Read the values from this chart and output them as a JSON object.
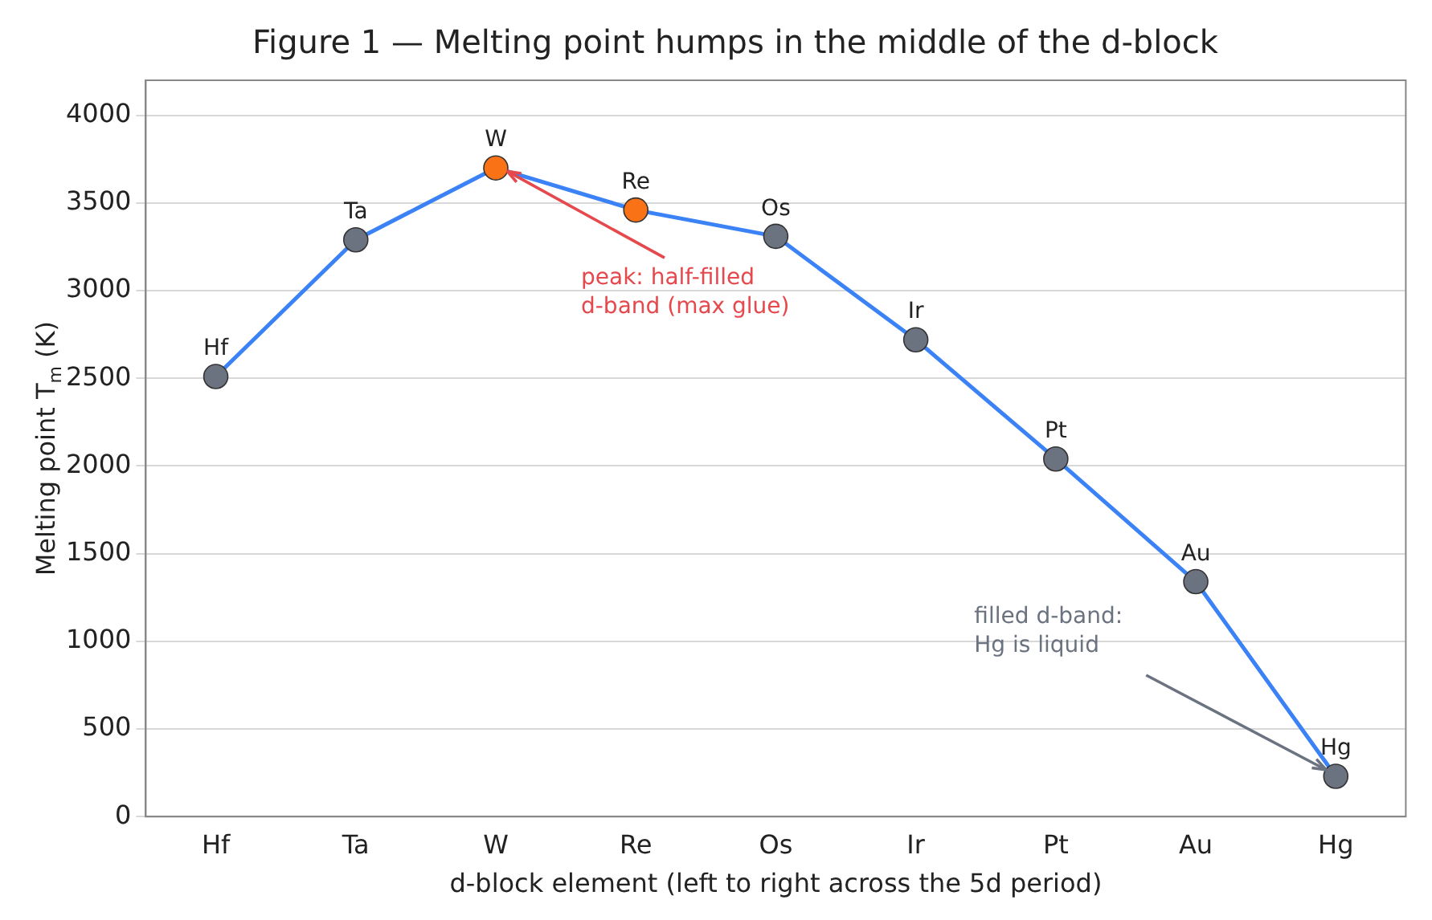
{
  "chart_data": {
    "type": "line",
    "title": "Figure 1 — Melting point humps in the middle of the d-block",
    "xlabel": "d-block element (left to right across the 5d period)",
    "ylabel": "Melting point T$_{m}$ (K)",
    "categories": [
      "Hf",
      "Ta",
      "W",
      "Re",
      "Os",
      "Ir",
      "Pt",
      "Au",
      "Hg"
    ],
    "series": [
      {
        "color": "#3b82f6",
        "colors": [
          "#6b7280",
          "#6b7280",
          "#f97316",
          "#f97316",
          "#6b7280",
          "#6b7280",
          "#6b7280",
          "#6b7280",
          "#6b7280"
        ],
        "values": [
          2510,
          3290,
          3700,
          3460,
          3310,
          2720,
          2040,
          1340,
          230
        ],
        "value_labels": [
          "Hf",
          "Ta",
          "W",
          "Re",
          "Os",
          "Ir",
          "Pt",
          "Au",
          "Hg"
        ]
      }
    ],
    "annotations": [
      {
        "text": "peak: half-filled\nd-band (max glue)",
        "x": "W",
        "y": 3700
      },
      {
        "text": "filled d-band:\nHg is liquid",
        "x": "Hg",
        "y": 230
      }
    ],
    "ylim": [
      0,
      4200
    ],
    "yticks": [
      0,
      500,
      1000,
      1500,
      2000,
      2500,
      3000,
      3500,
      4000
    ],
    "grid": "y",
    "legend": false,
    "marker": "circle",
    "line_style": "solid"
  }
}
